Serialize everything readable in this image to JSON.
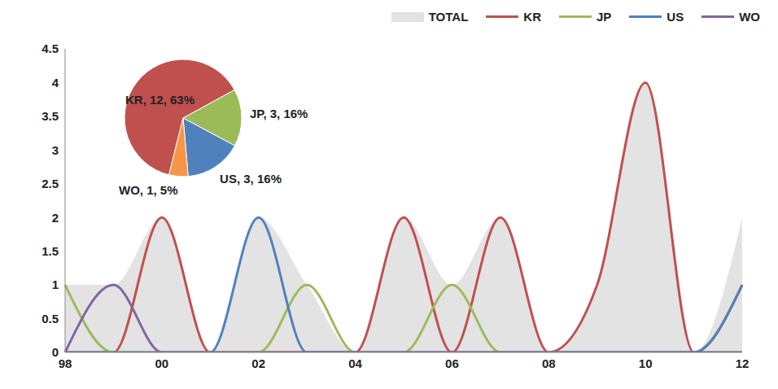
{
  "chart_data": [
    {
      "type": "line",
      "categories": [
        "98",
        null,
        "00",
        null,
        "02",
        null,
        "04",
        null,
        "06",
        null,
        "08",
        null,
        "10",
        null,
        "12"
      ],
      "series": [
        {
          "name": "TOTAL",
          "type": "area",
          "color": "#e3e3e3",
          "values": [
            1,
            1,
            2,
            0,
            2,
            1,
            0,
            2,
            1,
            2,
            0,
            1,
            4,
            0,
            2
          ]
        },
        {
          "name": "KR",
          "color": "#c0504d",
          "values": [
            0,
            0,
            2,
            0,
            0,
            0,
            0,
            2,
            0,
            2,
            0,
            1,
            4,
            0,
            1
          ]
        },
        {
          "name": "JP",
          "color": "#9bbb59",
          "values": [
            1,
            0,
            0,
            0,
            0,
            1,
            0,
            0,
            1,
            0,
            0,
            0,
            0,
            0,
            0
          ]
        },
        {
          "name": "US",
          "color": "#4f81bd",
          "values": [
            0,
            0,
            0,
            0,
            2,
            0,
            0,
            0,
            0,
            0,
            0,
            0,
            0,
            0,
            1
          ]
        },
        {
          "name": "WO",
          "color": "#8064a2",
          "values": [
            0,
            1,
            0,
            0,
            0,
            0,
            0,
            0,
            0,
            0,
            0,
            0,
            0,
            0,
            0
          ]
        }
      ],
      "ylim": [
        0,
        4.5
      ],
      "yticks": [
        0,
        0.5,
        1,
        1.5,
        2,
        2.5,
        3,
        3.5,
        4,
        4.5
      ],
      "legend": "upper right",
      "grid": false
    },
    {
      "type": "pie",
      "categories": [
        "KR",
        "JP",
        "US",
        "WO"
      ],
      "values": [
        12,
        3,
        3,
        1
      ],
      "percents": [
        63,
        16,
        16,
        5
      ],
      "value_labels": [
        "KR, 12, 63%",
        "JP, 3, 16%",
        "US, 3, 16%",
        "WO, 1, 5%"
      ],
      "colors": [
        "#c0504d",
        "#9bbb59",
        "#4f81bd",
        "#f79646"
      ]
    }
  ]
}
